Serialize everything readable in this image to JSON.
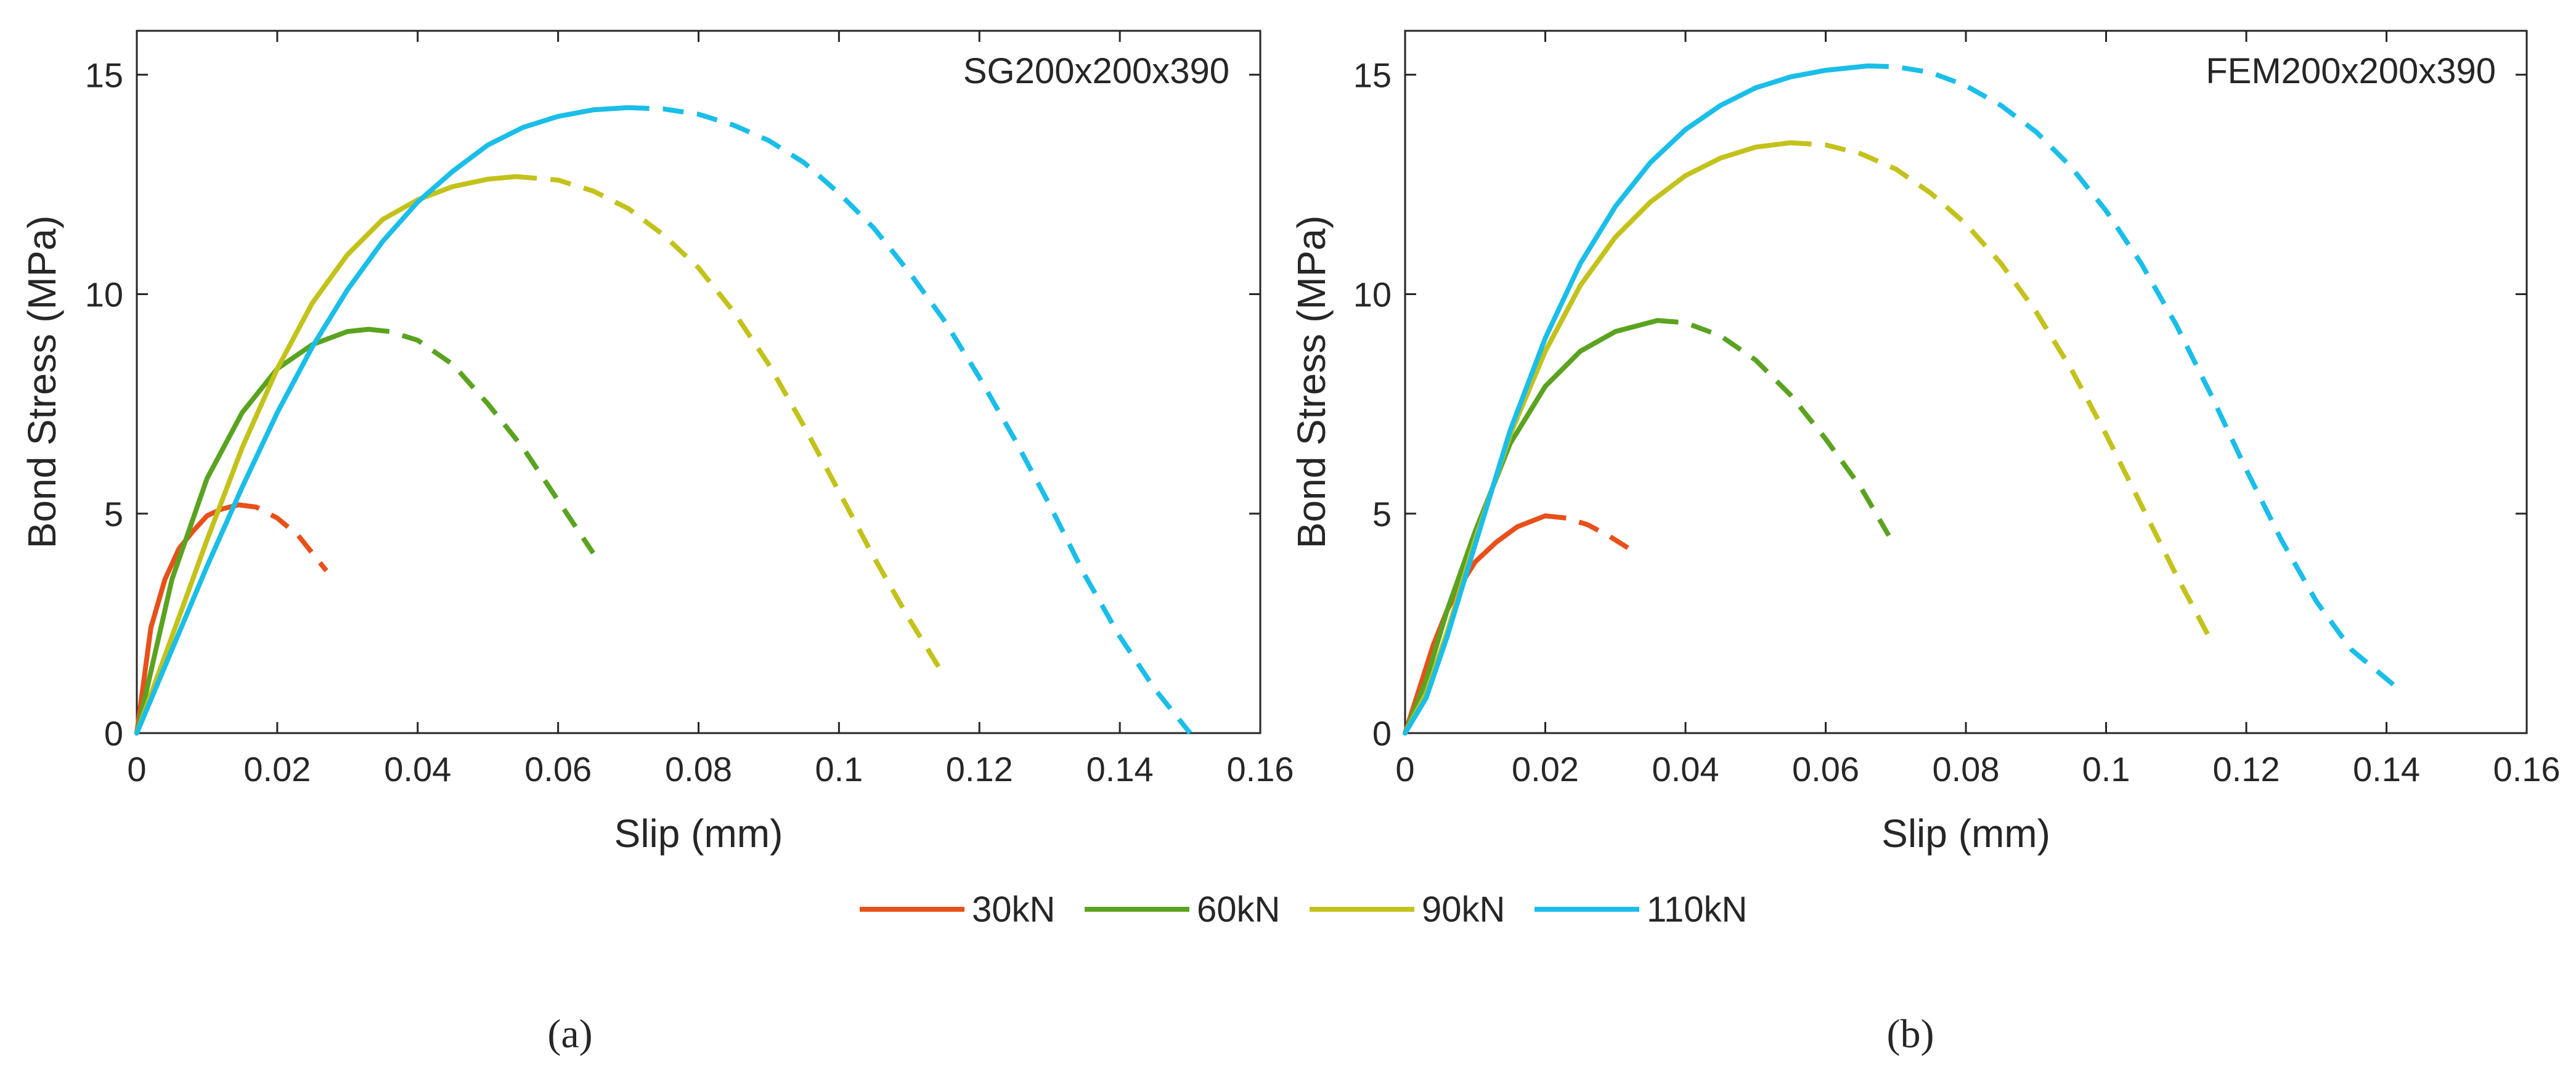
{
  "figure": {
    "panel_labels": [
      "(a)",
      "(b)"
    ],
    "legend": {
      "placement": "bottom-center",
      "entries": [
        {
          "label": "30kN",
          "color": "#E8501A"
        },
        {
          "label": "60kN",
          "color": "#5AA320"
        },
        {
          "label": "90kN",
          "color": "#C3C21B"
        },
        {
          "label": "110kN",
          "color": "#1ABEE8"
        }
      ]
    }
  },
  "chart_data": [
    {
      "type": "line",
      "title": "SG200x200x390",
      "xlabel": "Slip (mm)",
      "ylabel": "Bond Stress (MPa)",
      "xlim": [
        0,
        0.16
      ],
      "ylim": [
        0,
        16
      ],
      "xticks": [
        "0",
        "0.02",
        "0.04",
        "0.06",
        "0.08",
        "0.1",
        "0.12",
        "0.14",
        "0.16"
      ],
      "yticks": [
        "0",
        "5",
        "10",
        "15"
      ],
      "xtick_values": [
        0,
        0.02,
        0.04,
        0.06,
        0.08,
        0.1,
        0.12,
        0.14,
        0.16
      ],
      "ytick_values": [
        0,
        5,
        10,
        15
      ],
      "grid": false,
      "series": [
        {
          "name": "30kN",
          "color": "#E8501A",
          "solid": [
            [
              0,
              0
            ],
            [
              0.002,
              2.4
            ],
            [
              0.004,
              3.5
            ],
            [
              0.006,
              4.2
            ],
            [
              0.008,
              4.6
            ],
            [
              0.01,
              4.95
            ],
            [
              0.012,
              5.1
            ],
            [
              0.0145,
              5.2
            ]
          ],
          "dashed": [
            [
              0.0145,
              5.2
            ],
            [
              0.017,
              5.15
            ],
            [
              0.02,
              4.9
            ],
            [
              0.023,
              4.5
            ],
            [
              0.025,
              4.1
            ],
            [
              0.027,
              3.7
            ]
          ]
        },
        {
          "name": "60kN",
          "color": "#5AA320",
          "solid": [
            [
              0,
              0
            ],
            [
              0.005,
              3.5
            ],
            [
              0.01,
              5.8
            ],
            [
              0.015,
              7.3
            ],
            [
              0.02,
              8.3
            ],
            [
              0.025,
              8.85
            ],
            [
              0.03,
              9.15
            ],
            [
              0.033,
              9.2
            ]
          ],
          "dashed": [
            [
              0.033,
              9.2
            ],
            [
              0.036,
              9.15
            ],
            [
              0.04,
              8.95
            ],
            [
              0.045,
              8.4
            ],
            [
              0.05,
              7.5
            ],
            [
              0.055,
              6.5
            ],
            [
              0.06,
              5.3
            ],
            [
              0.065,
              4.1
            ]
          ]
        },
        {
          "name": "90kN",
          "color": "#C3C21B",
          "solid": [
            [
              0,
              0
            ],
            [
              0.005,
              2.2
            ],
            [
              0.01,
              4.4
            ],
            [
              0.015,
              6.5
            ],
            [
              0.02,
              8.3
            ],
            [
              0.025,
              9.8
            ],
            [
              0.03,
              10.9
            ],
            [
              0.035,
              11.7
            ],
            [
              0.04,
              12.15
            ],
            [
              0.045,
              12.45
            ],
            [
              0.05,
              12.62
            ],
            [
              0.054,
              12.68
            ]
          ],
          "dashed": [
            [
              0.054,
              12.68
            ],
            [
              0.06,
              12.6
            ],
            [
              0.065,
              12.35
            ],
            [
              0.07,
              11.95
            ],
            [
              0.075,
              11.35
            ],
            [
              0.08,
              10.6
            ],
            [
              0.085,
              9.6
            ],
            [
              0.09,
              8.4
            ],
            [
              0.095,
              7.0
            ],
            [
              0.1,
              5.5
            ],
            [
              0.105,
              4.0
            ],
            [
              0.11,
              2.6
            ],
            [
              0.115,
              1.3
            ]
          ]
        },
        {
          "name": "110kN",
          "color": "#1ABEE8",
          "solid": [
            [
              0,
              0
            ],
            [
              0.005,
              1.9
            ],
            [
              0.01,
              3.8
            ],
            [
              0.015,
              5.6
            ],
            [
              0.02,
              7.3
            ],
            [
              0.025,
              8.8
            ],
            [
              0.03,
              10.1
            ],
            [
              0.035,
              11.2
            ],
            [
              0.04,
              12.1
            ],
            [
              0.045,
              12.8
            ],
            [
              0.05,
              13.4
            ],
            [
              0.055,
              13.8
            ],
            [
              0.06,
              14.05
            ],
            [
              0.065,
              14.2
            ],
            [
              0.07,
              14.25
            ]
          ],
          "dashed": [
            [
              0.07,
              14.25
            ],
            [
              0.075,
              14.22
            ],
            [
              0.08,
              14.1
            ],
            [
              0.085,
              13.85
            ],
            [
              0.09,
              13.5
            ],
            [
              0.095,
              13.0
            ],
            [
              0.1,
              12.3
            ],
            [
              0.105,
              11.5
            ],
            [
              0.11,
              10.5
            ],
            [
              0.115,
              9.4
            ],
            [
              0.12,
              8.1
            ],
            [
              0.125,
              6.7
            ],
            [
              0.13,
              5.2
            ],
            [
              0.135,
              3.6
            ],
            [
              0.14,
              2.2
            ],
            [
              0.145,
              1.0
            ],
            [
              0.15,
              0
            ]
          ]
        }
      ]
    },
    {
      "type": "line",
      "title": "FEM200x200x390",
      "xlabel": "Slip (mm)",
      "ylabel": "Bond Stress (MPa)",
      "xlim": [
        0,
        0.16
      ],
      "ylim": [
        0,
        16
      ],
      "xticks": [
        "0",
        "0.02",
        "0.04",
        "0.06",
        "0.08",
        "0.1",
        "0.12",
        "0.14",
        "0.16"
      ],
      "yticks": [
        "0",
        "5",
        "10",
        "15"
      ],
      "xtick_values": [
        0,
        0.02,
        0.04,
        0.06,
        0.08,
        0.1,
        0.12,
        0.14,
        0.16
      ],
      "ytick_values": [
        0,
        5,
        10,
        15
      ],
      "grid": false,
      "series": [
        {
          "name": "30kN",
          "color": "#E8501A",
          "solid": [
            [
              0,
              0
            ],
            [
              0.002,
              1.0
            ],
            [
              0.004,
              2.0
            ],
            [
              0.006,
              2.8
            ],
            [
              0.008,
              3.4
            ],
            [
              0.01,
              3.9
            ],
            [
              0.013,
              4.35
            ],
            [
              0.016,
              4.7
            ],
            [
              0.02,
              4.95
            ]
          ],
          "dashed": [
            [
              0.02,
              4.95
            ],
            [
              0.023,
              4.9
            ],
            [
              0.026,
              4.75
            ],
            [
              0.029,
              4.5
            ],
            [
              0.032,
              4.2
            ]
          ]
        },
        {
          "name": "60kN",
          "color": "#5AA320",
          "solid": [
            [
              0,
              0
            ],
            [
              0.003,
              1.2
            ],
            [
              0.006,
              2.8
            ],
            [
              0.01,
              4.6
            ],
            [
              0.015,
              6.6
            ],
            [
              0.02,
              7.9
            ],
            [
              0.025,
              8.7
            ],
            [
              0.03,
              9.15
            ],
            [
              0.036,
              9.4
            ]
          ],
          "dashed": [
            [
              0.036,
              9.4
            ],
            [
              0.04,
              9.35
            ],
            [
              0.045,
              9.05
            ],
            [
              0.05,
              8.5
            ],
            [
              0.055,
              7.7
            ],
            [
              0.06,
              6.7
            ],
            [
              0.065,
              5.6
            ],
            [
              0.069,
              4.5
            ]
          ]
        },
        {
          "name": "90kN",
          "color": "#C3C21B",
          "solid": [
            [
              0,
              0
            ],
            [
              0.003,
              0.9
            ],
            [
              0.006,
              2.3
            ],
            [
              0.01,
              4.4
            ],
            [
              0.015,
              6.8
            ],
            [
              0.02,
              8.7
            ],
            [
              0.025,
              10.2
            ],
            [
              0.03,
              11.3
            ],
            [
              0.035,
              12.1
            ],
            [
              0.04,
              12.7
            ],
            [
              0.045,
              13.1
            ],
            [
              0.05,
              13.35
            ],
            [
              0.055,
              13.45
            ]
          ],
          "dashed": [
            [
              0.055,
              13.45
            ],
            [
              0.06,
              13.4
            ],
            [
              0.065,
              13.2
            ],
            [
              0.07,
              12.85
            ],
            [
              0.075,
              12.3
            ],
            [
              0.08,
              11.6
            ],
            [
              0.085,
              10.7
            ],
            [
              0.09,
              9.6
            ],
            [
              0.095,
              8.3
            ],
            [
              0.1,
              6.8
            ],
            [
              0.105,
              5.2
            ],
            [
              0.11,
              3.6
            ],
            [
              0.115,
              2.1
            ]
          ]
        },
        {
          "name": "110kN",
          "color": "#1ABEE8",
          "solid": [
            [
              0,
              0
            ],
            [
              0.003,
              0.8
            ],
            [
              0.006,
              2.2
            ],
            [
              0.01,
              4.3
            ],
            [
              0.015,
              6.9
            ],
            [
              0.02,
              9.0
            ],
            [
              0.025,
              10.7
            ],
            [
              0.03,
              12.0
            ],
            [
              0.035,
              13.0
            ],
            [
              0.04,
              13.75
            ],
            [
              0.045,
              14.3
            ],
            [
              0.05,
              14.7
            ],
            [
              0.055,
              14.95
            ],
            [
              0.06,
              15.1
            ],
            [
              0.066,
              15.2
            ]
          ],
          "dashed": [
            [
              0.066,
              15.2
            ],
            [
              0.07,
              15.18
            ],
            [
              0.075,
              15.05
            ],
            [
              0.08,
              14.75
            ],
            [
              0.085,
              14.3
            ],
            [
              0.09,
              13.7
            ],
            [
              0.095,
              12.9
            ],
            [
              0.1,
              11.9
            ],
            [
              0.105,
              10.7
            ],
            [
              0.11,
              9.3
            ],
            [
              0.115,
              7.7
            ],
            [
              0.12,
              6.0
            ],
            [
              0.125,
              4.4
            ],
            [
              0.13,
              3.0
            ],
            [
              0.135,
              1.9
            ],
            [
              0.141,
              1.1
            ]
          ]
        }
      ]
    }
  ]
}
